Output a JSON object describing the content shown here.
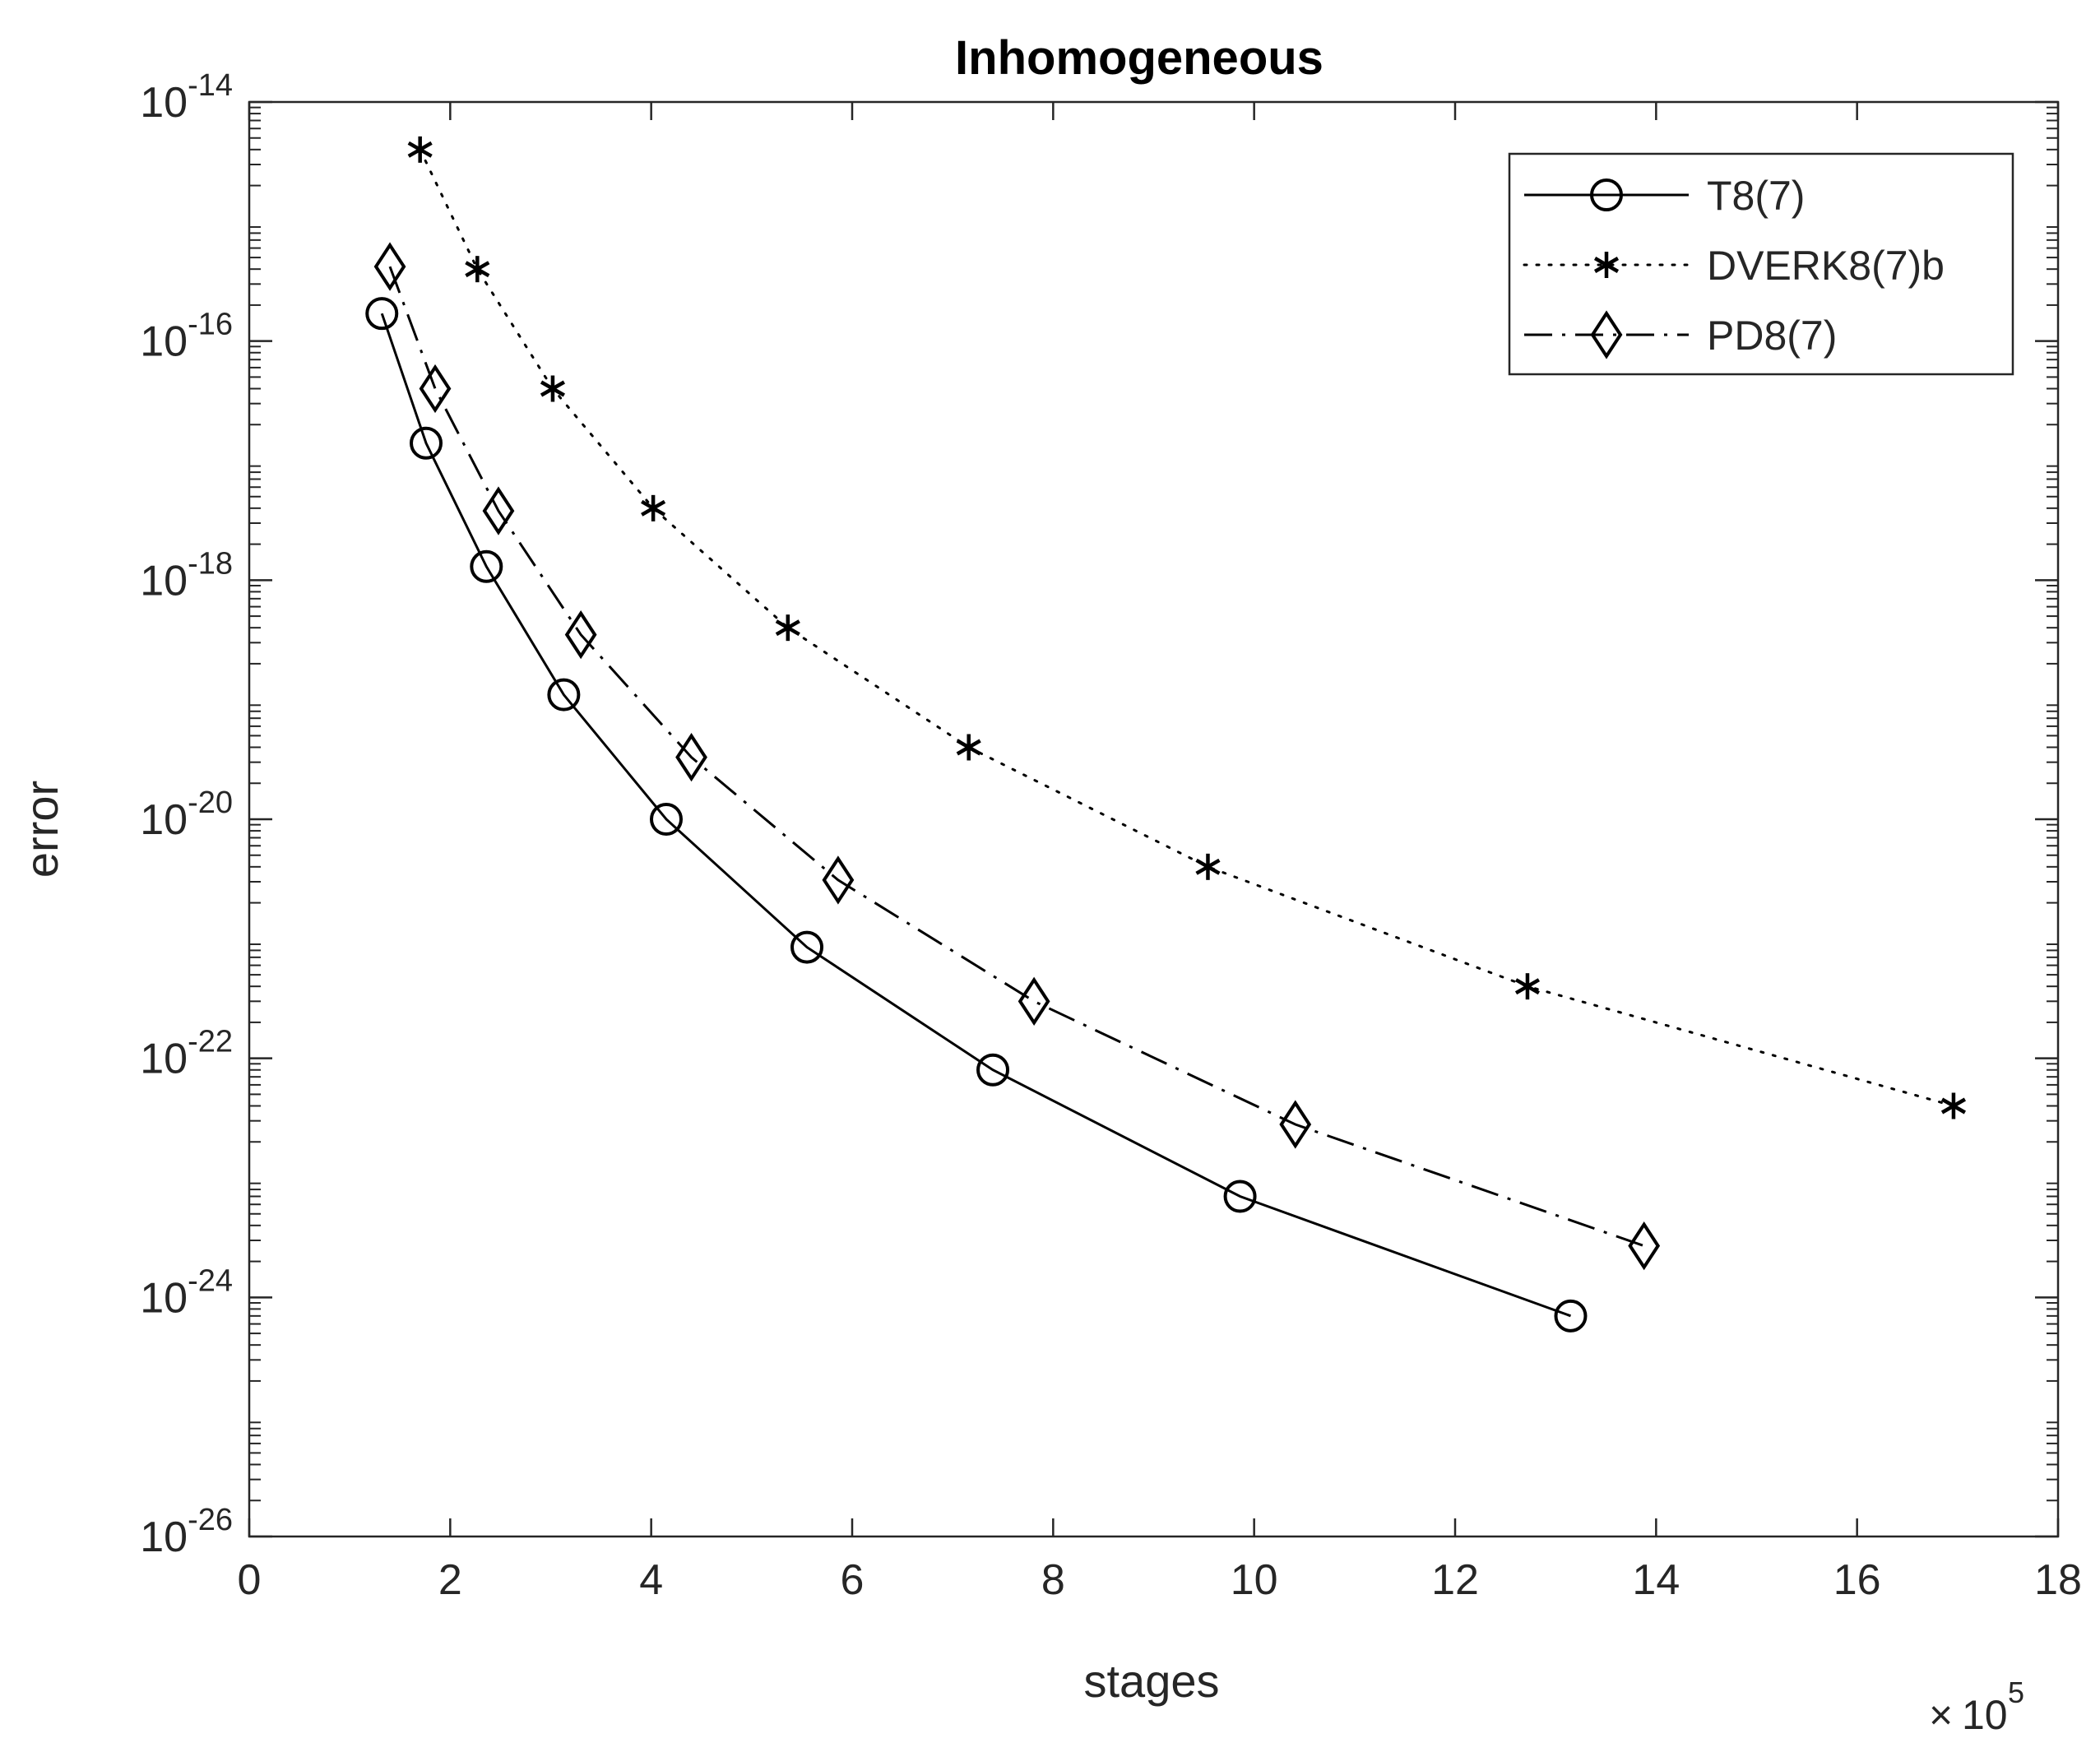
{
  "chart_data": {
    "type": "line",
    "title": "Inhomogeneous",
    "xlabel": "stages",
    "ylabel": "error",
    "x_exponent_base": "10",
    "x_exponent_power": "5",
    "x_multiplier_symbol": "×",
    "xlim": [
      0,
      18
    ],
    "ylim": [
      1e-26,
      1e-14
    ],
    "yscale": "log",
    "xticks": [
      0,
      2,
      4,
      6,
      8,
      10,
      12,
      14,
      16,
      18
    ],
    "xtick_labels": [
      "0",
      "2",
      "4",
      "6",
      "8",
      "10",
      "12",
      "14",
      "16",
      "18"
    ],
    "yticks": [
      -14,
      -16,
      -18,
      -20,
      -22,
      -24,
      -26
    ],
    "ytick_labels": [
      {
        "base": "10",
        "exp": "-14"
      },
      {
        "base": "10",
        "exp": "-16"
      },
      {
        "base": "10",
        "exp": "-18"
      },
      {
        "base": "10",
        "exp": "-20"
      },
      {
        "base": "10",
        "exp": "-22"
      },
      {
        "base": "10",
        "exp": "-24"
      },
      {
        "base": "10",
        "exp": "-26"
      }
    ],
    "grid": false,
    "legend_position": "top-right",
    "series": [
      {
        "name": "T8(7)",
        "marker": "circle",
        "line_style": "solid",
        "color": "#000000",
        "x": [
          1.32,
          1.76,
          2.36,
          3.13,
          4.15,
          5.55,
          7.4,
          9.86,
          13.15
        ],
        "y": [
          1.7e-16,
          1.4e-17,
          1.3e-18,
          1.1e-19,
          1e-20,
          8.5e-22,
          8e-23,
          7e-24,
          7e-25
        ]
      },
      {
        "name": "DVERK8(7)b",
        "marker": "asterisk",
        "line_style": "dotted",
        "color": "#000000",
        "x": [
          1.7,
          2.27,
          3.02,
          4.02,
          5.36,
          7.16,
          9.54,
          12.72,
          16.96
        ],
        "y": [
          4e-15,
          4e-16,
          4e-17,
          4e-18,
          4e-19,
          4e-20,
          4e-21,
          4e-22,
          4e-23
        ]
      },
      {
        "name": "PD8(7)",
        "marker": "diamond",
        "line_style": "dashdot",
        "color": "#000000",
        "x": [
          1.4,
          1.85,
          2.48,
          3.3,
          4.4,
          5.86,
          7.81,
          10.41,
          13.88
        ],
        "y": [
          4.2e-16,
          4e-17,
          3.8e-18,
          3.5e-19,
          3.3e-20,
          3.1e-21,
          3e-22,
          2.8e-23,
          2.7e-24
        ]
      }
    ]
  }
}
